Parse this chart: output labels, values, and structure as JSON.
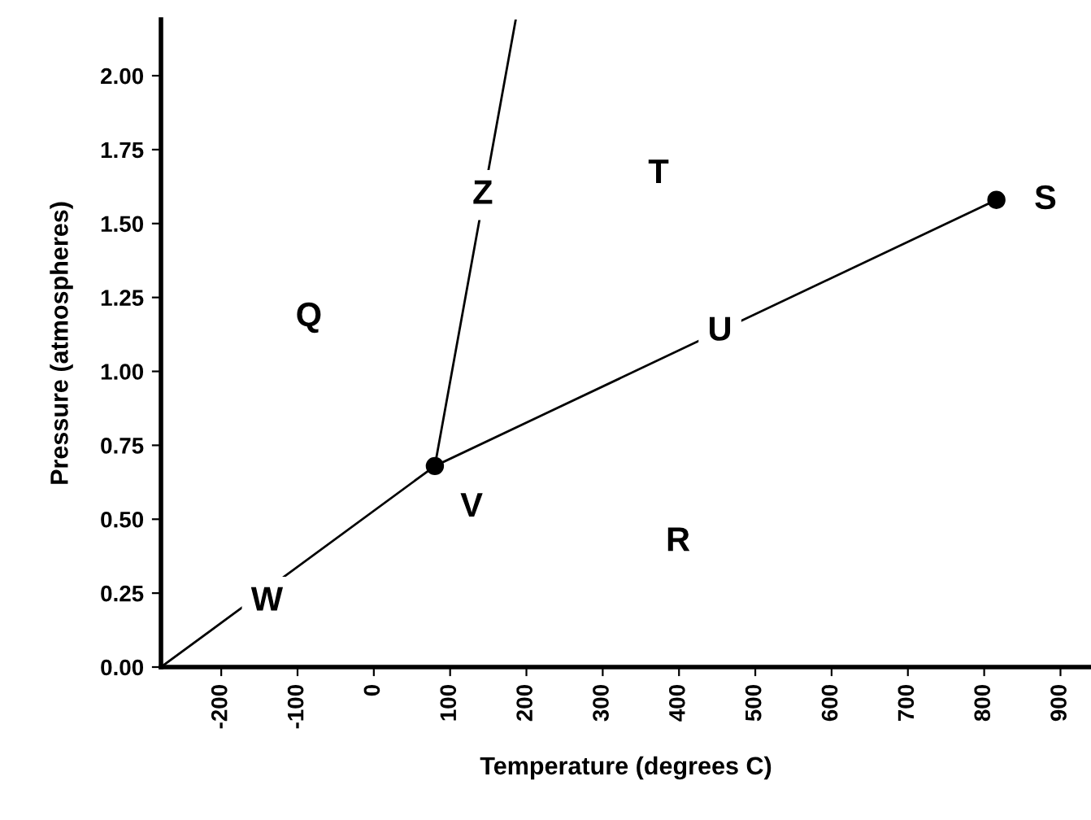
{
  "chart_data": {
    "type": "line",
    "xlabel": "Temperature (degrees C)",
    "ylabel": "Pressure (atmospheres)",
    "xlim": [
      -279,
      940
    ],
    "ylim": [
      0,
      2.19
    ],
    "xticks": [
      -200,
      -100,
      0,
      100,
      200,
      300,
      400,
      500,
      600,
      700,
      800,
      900
    ],
    "yticks": [
      {
        "value": 0,
        "label": "0.00"
      },
      {
        "value": 0.25,
        "label": "0.25"
      },
      {
        "value": 0.5,
        "label": "0.50"
      },
      {
        "value": 0.75,
        "label": "0.75"
      },
      {
        "value": 1.0,
        "label": "1.00"
      },
      {
        "value": 1.25,
        "label": "1.25"
      },
      {
        "value": 1.5,
        "label": "1.50"
      },
      {
        "value": 1.75,
        "label": "1.75"
      },
      {
        "value": 2.0,
        "label": "2.00"
      }
    ],
    "grid": false,
    "legend": false,
    "series": [
      {
        "color": "#000000",
        "x": [
          -279,
          80
        ],
        "values": [
          0,
          0.68
        ],
        "marker": "none"
      },
      {
        "color": "#000000",
        "x": [
          80,
          186
        ],
        "values": [
          0.68,
          2.19
        ],
        "marker": "none"
      },
      {
        "color": "#000000",
        "x": [
          80,
          816
        ],
        "values": [
          0.68,
          1.58
        ],
        "marker": "none"
      },
      {
        "type": "scatter",
        "color": "#000000",
        "x": [
          80,
          816
        ],
        "values": [
          0.68,
          1.58
        ],
        "marker": "circle"
      }
    ],
    "annotations": [
      "Q",
      "Z",
      "T",
      "U",
      "S",
      "V",
      "R",
      "W"
    ]
  }
}
